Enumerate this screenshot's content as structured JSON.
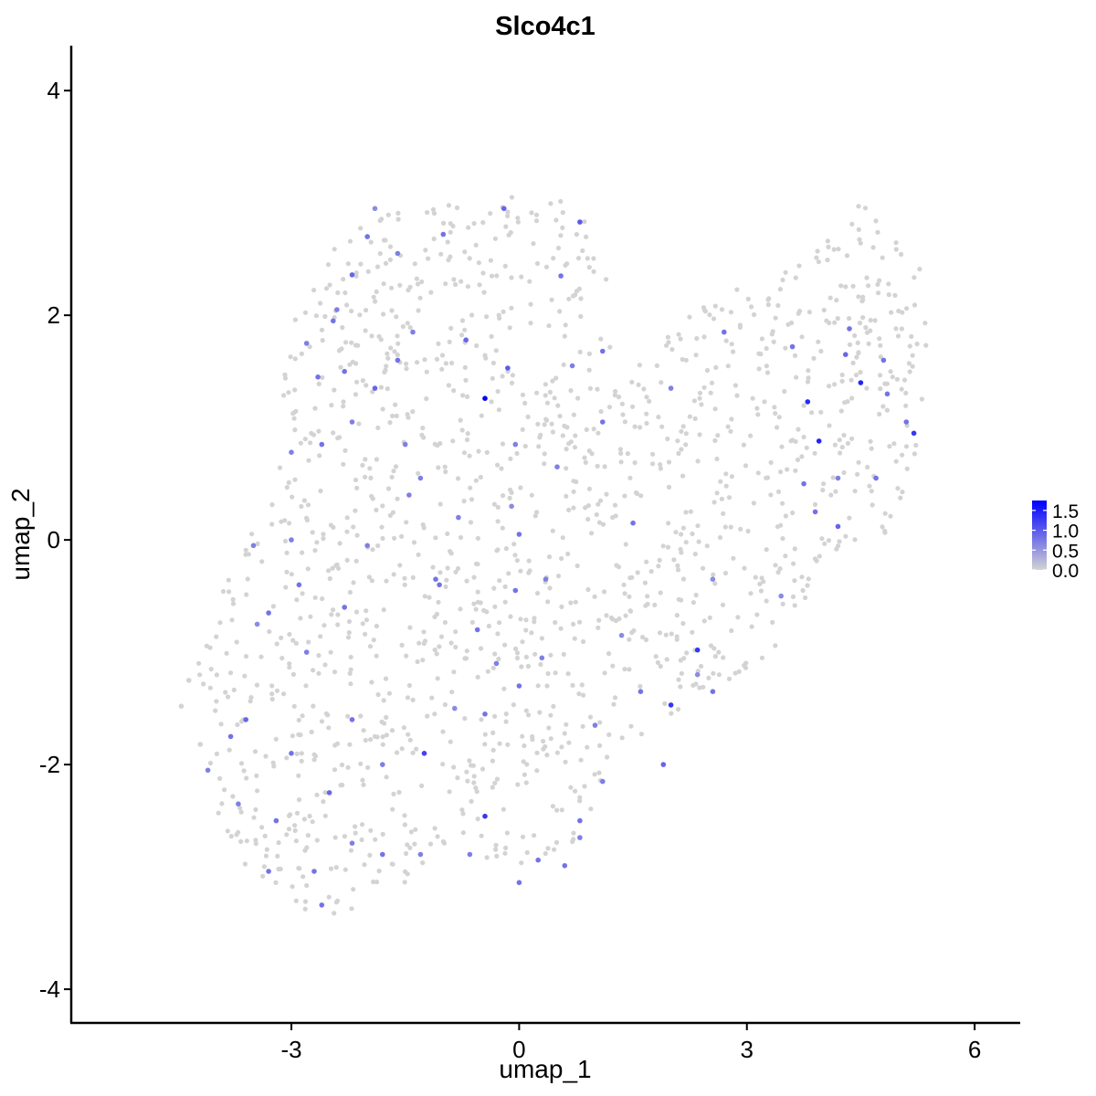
{
  "chart_data": {
    "type": "scatter",
    "title": "Slco4c1",
    "xlabel": "umap_1",
    "ylabel": "umap_2",
    "xlim": [
      -5.9,
      6.6
    ],
    "ylim": [
      -4.3,
      4.4
    ],
    "x_ticks": [
      -3,
      0,
      3,
      6
    ],
    "y_ticks": [
      -4,
      -2,
      0,
      2,
      4
    ],
    "x_tick_labels": [
      "-3",
      "0",
      "3",
      "6"
    ],
    "y_tick_labels": [
      "-4",
      "-2",
      "0",
      "2",
      "4"
    ],
    "grid": false,
    "color_scale": {
      "low_color": "#d3d3d3",
      "high_color": "#0000ff",
      "min": 0.0,
      "max": 1.75,
      "ticks": [
        0.0,
        0.5,
        1.0,
        1.5
      ],
      "tick_labels": [
        "0.0",
        "0.5",
        "1.0",
        "1.5"
      ],
      "legend_position": "right"
    },
    "region_outline": [
      [
        -4.7,
        -1.3
      ],
      [
        -4.3,
        -1.4
      ],
      [
        -4.1,
        -2.2
      ],
      [
        -3.8,
        -2.8
      ],
      [
        -3.2,
        -3.1
      ],
      [
        -2.6,
        -3.4
      ],
      [
        -2.1,
        -3.3
      ],
      [
        -1.5,
        -3.1
      ],
      [
        -1.0,
        -2.7
      ],
      [
        -0.3,
        -2.9
      ],
      [
        0.3,
        -3.0
      ],
      [
        0.7,
        -2.9
      ],
      [
        1.0,
        -2.4
      ],
      [
        1.3,
        -1.9
      ],
      [
        1.9,
        -1.6
      ],
      [
        2.5,
        -1.4
      ],
      [
        3.0,
        -1.2
      ],
      [
        3.4,
        -1.0
      ],
      [
        3.7,
        -0.6
      ],
      [
        4.0,
        -0.3
      ],
      [
        4.4,
        -0.1
      ],
      [
        5.0,
        0.1
      ],
      [
        5.3,
        0.8
      ],
      [
        5.4,
        1.6
      ],
      [
        5.3,
        2.4
      ],
      [
        4.9,
        2.8
      ],
      [
        4.5,
        3.0
      ],
      [
        4.1,
        2.7
      ],
      [
        3.6,
        2.4
      ],
      [
        3.0,
        2.3
      ],
      [
        2.4,
        2.1
      ],
      [
        1.8,
        1.8
      ],
      [
        1.4,
        1.5
      ],
      [
        1.1,
        1.9
      ],
      [
        1.2,
        2.6
      ],
      [
        0.9,
        2.9
      ],
      [
        0.3,
        3.1
      ],
      [
        -0.2,
        3.1
      ],
      [
        -0.8,
        3.0
      ],
      [
        -1.5,
        3.0
      ],
      [
        -2.2,
        2.8
      ],
      [
        -2.6,
        2.5
      ],
      [
        -2.9,
        2.1
      ],
      [
        -3.1,
        1.6
      ],
      [
        -3.2,
        0.8
      ],
      [
        -3.5,
        0.1
      ],
      [
        -3.9,
        -0.4
      ],
      [
        -4.2,
        -0.9
      ],
      [
        -4.6,
        -1.1
      ]
    ],
    "points": [
      [
        -0.45,
        1.26,
        1.75
      ],
      [
        4.5,
        1.4,
        1.45
      ],
      [
        3.8,
        1.23,
        1.4
      ],
      [
        3.95,
        0.88,
        1.45
      ],
      [
        5.2,
        0.95,
        1.3
      ],
      [
        2.35,
        -0.98,
        1.3
      ],
      [
        2.0,
        -1.47,
        1.3
      ],
      [
        -0.45,
        -2.46,
        1.3
      ],
      [
        -1.25,
        -1.9,
        1.2
      ],
      [
        0.8,
        2.83,
        1.0
      ],
      [
        -0.15,
        1.53,
        1.0
      ],
      [
        -0.7,
        1.78,
        0.9
      ],
      [
        -2.2,
        2.36,
        0.9
      ],
      [
        -1.6,
        1.6,
        0.8
      ],
      [
        -2.45,
        1.95,
        0.8
      ],
      [
        -2.65,
        1.45,
        0.8
      ],
      [
        -1.9,
        1.35,
        0.9
      ],
      [
        -1.0,
        2.72,
        0.8
      ],
      [
        -0.2,
        2.95,
        0.9
      ],
      [
        0.55,
        2.35,
        0.8
      ],
      [
        -1.6,
        2.55,
        0.7
      ],
      [
        -2.0,
        2.7,
        0.8
      ],
      [
        -1.4,
        1.85,
        0.7
      ],
      [
        -2.2,
        1.05,
        0.7
      ],
      [
        -2.6,
        0.85,
        0.8
      ],
      [
        -3.0,
        0.78,
        0.7
      ],
      [
        -3.5,
        -0.05,
        0.7
      ],
      [
        -2.9,
        -0.4,
        0.8
      ],
      [
        -2.3,
        -0.6,
        0.8
      ],
      [
        -2.8,
        -1.0,
        0.7
      ],
      [
        -3.6,
        -1.6,
        0.9
      ],
      [
        -3.8,
        -1.75,
        0.8
      ],
      [
        -3.0,
        -1.9,
        0.8
      ],
      [
        -2.5,
        -2.25,
        0.9
      ],
      [
        -3.2,
        -2.5,
        0.8
      ],
      [
        -3.3,
        -2.95,
        0.8
      ],
      [
        -2.7,
        -2.95,
        0.8
      ],
      [
        -2.2,
        -2.7,
        0.7
      ],
      [
        -2.6,
        -3.25,
        0.8
      ],
      [
        -1.8,
        -2.8,
        0.8
      ],
      [
        -1.3,
        -2.8,
        0.7
      ],
      [
        -0.65,
        -2.8,
        0.7
      ],
      [
        0.0,
        -3.05,
        0.8
      ],
      [
        0.25,
        -2.85,
        0.8
      ],
      [
        0.6,
        -2.9,
        0.8
      ],
      [
        0.8,
        -2.5,
        0.8
      ],
      [
        0.8,
        -2.65,
        0.7
      ],
      [
        1.1,
        -2.15,
        0.7
      ],
      [
        1.0,
        -1.65,
        0.7
      ],
      [
        1.6,
        -1.35,
        0.8
      ],
      [
        1.9,
        -2.0,
        0.9
      ],
      [
        2.55,
        -1.35,
        0.8
      ],
      [
        0.0,
        -1.3,
        0.8
      ],
      [
        -0.3,
        -1.1,
        0.7
      ],
      [
        -0.55,
        -0.8,
        0.8
      ],
      [
        -0.8,
        0.2,
        0.7
      ],
      [
        -1.1,
        -0.35,
        0.8
      ],
      [
        -1.45,
        0.4,
        0.7
      ],
      [
        -1.5,
        0.85,
        0.7
      ],
      [
        0.0,
        0.05,
        0.8
      ],
      [
        -0.05,
        -0.45,
        0.8
      ],
      [
        0.35,
        -0.35,
        0.7
      ],
      [
        1.5,
        0.15,
        0.8
      ],
      [
        1.1,
        1.05,
        0.8
      ],
      [
        0.7,
        1.55,
        0.7
      ],
      [
        1.1,
        1.68,
        0.8
      ],
      [
        2.0,
        1.35,
        0.7
      ],
      [
        2.7,
        1.85,
        0.8
      ],
      [
        3.6,
        1.72,
        0.8
      ],
      [
        4.3,
        1.65,
        0.9
      ],
      [
        4.35,
        1.88,
        0.8
      ],
      [
        4.8,
        1.6,
        0.8
      ],
      [
        4.85,
        1.3,
        0.8
      ],
      [
        5.1,
        1.05,
        0.8
      ],
      [
        4.7,
        0.55,
        0.8
      ],
      [
        4.2,
        0.55,
        0.7
      ],
      [
        3.9,
        0.25,
        0.8
      ],
      [
        4.2,
        0.12,
        0.9
      ],
      [
        3.75,
        0.5,
        0.8
      ],
      [
        -2.3,
        1.5,
        0.8
      ],
      [
        -2.8,
        1.75,
        0.7
      ],
      [
        -2.4,
        2.05,
        0.7
      ],
      [
        -3.0,
        0.0,
        0.7
      ],
      [
        -2.0,
        -0.05,
        0.7
      ],
      [
        -1.05,
        -0.4,
        0.8
      ],
      [
        0.3,
        -1.05,
        0.7
      ],
      [
        -0.45,
        -1.55,
        0.8
      ],
      [
        -3.3,
        -0.65,
        0.8
      ],
      [
        -2.2,
        -1.6,
        0.8
      ],
      [
        -1.8,
        -2.0,
        0.7
      ],
      [
        -4.1,
        -2.05,
        0.7
      ],
      [
        -3.7,
        -2.35,
        0.7
      ],
      [
        0.5,
        0.65,
        0.7
      ],
      [
        -0.05,
        0.85,
        0.7
      ],
      [
        -1.3,
        0.55,
        0.7
      ],
      [
        -0.85,
        -1.5,
        0.6
      ],
      [
        -3.45,
        -0.75,
        0.6
      ],
      [
        -1.9,
        2.95,
        0.6
      ],
      [
        -0.1,
        0.3,
        0.6
      ],
      [
        3.45,
        -0.5,
        0.6
      ],
      [
        2.55,
        -0.35,
        0.6
      ],
      [
        2.35,
        -1.2,
        0.6
      ],
      [
        1.35,
        -0.85,
        0.6
      ],
      [
        -4.35,
        -1.25,
        0.0
      ],
      [
        -4.45,
        -1.48,
        0.0
      ],
      [
        -4.2,
        -1.82,
        0.0
      ]
    ],
    "grey_points_note": ""
  }
}
